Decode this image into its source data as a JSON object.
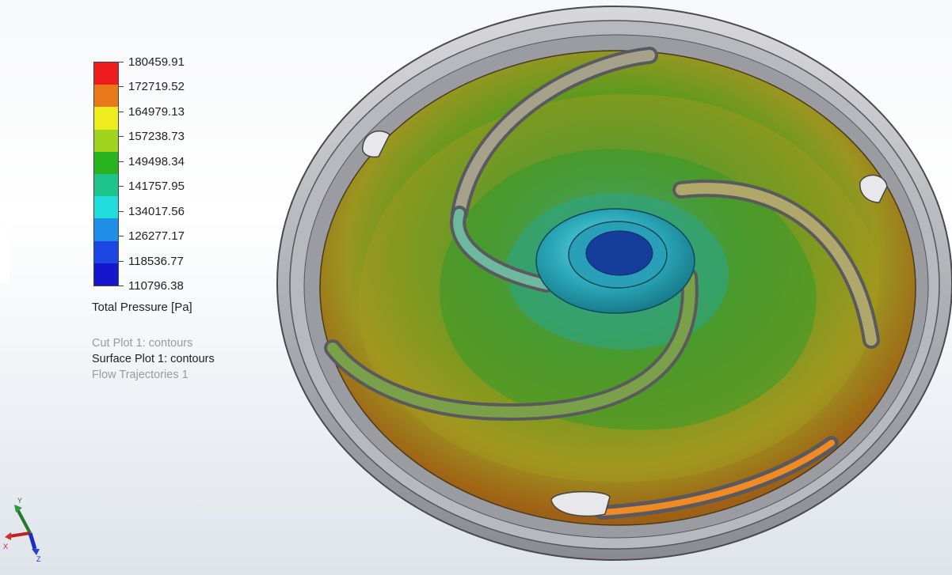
{
  "legend": {
    "quantity_label": "Total Pressure [Pa]",
    "ticks": [
      "180459.91",
      "172719.52",
      "164979.13",
      "157238.73",
      "149498.34",
      "141757.95",
      "134017.56",
      "126277.17",
      "118536.77",
      "110796.38"
    ],
    "colors": [
      "#ee1c1c",
      "#e8781a",
      "#eded1e",
      "#a0d41e",
      "#28b41e",
      "#1fc48c",
      "#22dcdc",
      "#1e8ee6",
      "#1e46e2",
      "#1616cc"
    ]
  },
  "plots": [
    {
      "label": "Cut Plot 1: contours",
      "active": false
    },
    {
      "label": "Surface Plot 1: contours",
      "active": true
    },
    {
      "label": "Flow Trajectories 1",
      "active": false
    }
  ],
  "triad": {
    "axis_y": "Y",
    "axis_x": "X",
    "axis_z": "Z"
  },
  "model": {
    "icon": "impeller-pressure-contour-model"
  }
}
